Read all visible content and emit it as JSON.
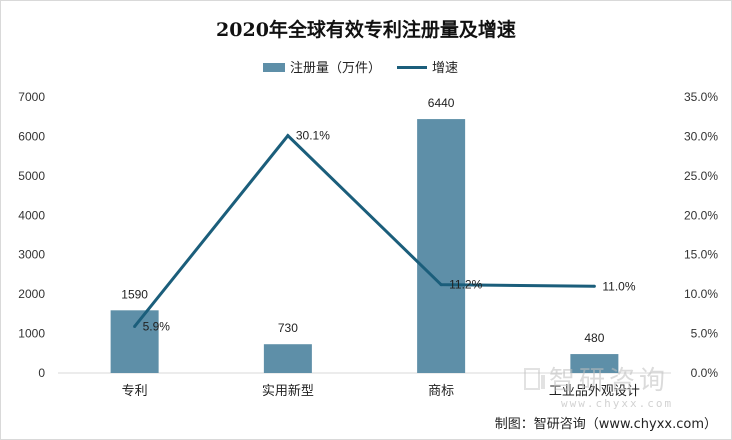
{
  "chart_data": {
    "type": "bar+line",
    "title": "2020年全球有效专利注册量及增速",
    "categories": [
      "专利",
      "实用新型",
      "商标",
      "工业品外观设计"
    ],
    "series": [
      {
        "name": "注册量（万件）",
        "type": "bar",
        "axis": "left",
        "color": "#5e8fa8",
        "values": [
          1590,
          730,
          6440,
          480
        ]
      },
      {
        "name": "增速",
        "type": "line",
        "axis": "right",
        "color": "#1b5e7b",
        "values": [
          5.9,
          30.1,
          11.2,
          11.0
        ]
      }
    ],
    "bar_labels": [
      "1590",
      "730",
      "6440",
      "480"
    ],
    "line_labels": [
      "5.9%",
      "30.1%",
      "11.2%",
      "11.0%"
    ],
    "y_left": {
      "min": 0,
      "max": 7000,
      "ticks": [
        "0",
        "1000",
        "2000",
        "3000",
        "4000",
        "5000",
        "6000",
        "7000"
      ]
    },
    "y_right": {
      "min": 0,
      "max": 35,
      "ticks": [
        "0.0%",
        "5.0%",
        "10.0%",
        "15.0%",
        "20.0%",
        "25.0%",
        "30.0%",
        "35.0%"
      ]
    },
    "legend": "top-center",
    "grid": false
  },
  "source": "制图：智研咨询（www.chyxx.com）",
  "watermark": {
    "brand": "智研咨询",
    "url": "www.chyxx.com"
  }
}
